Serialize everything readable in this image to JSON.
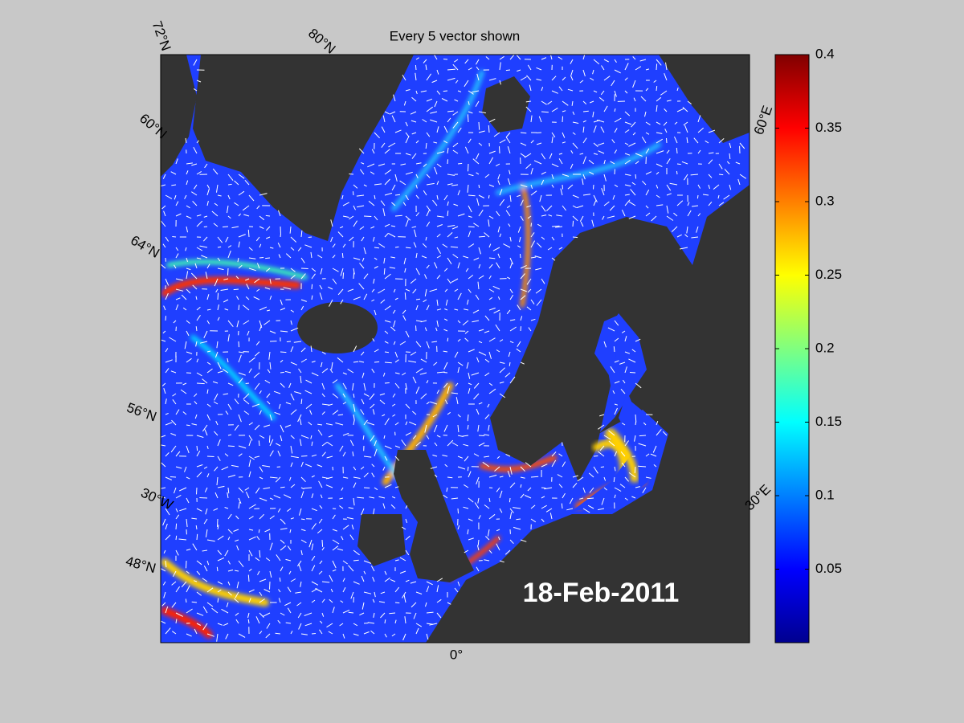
{
  "title": "Every 5 vector shown",
  "date_label": "18-Feb-2011",
  "graticule_labels": [
    "72°N",
    "80°N",
    "60°N",
    "64°N",
    "56°N",
    "30°W",
    "48°N",
    "0°",
    "30°E",
    "60°E"
  ],
  "colorbar": {
    "lim": [
      0,
      0.4
    ],
    "ticks": [
      0.05,
      0.1,
      0.15,
      0.2,
      0.25,
      0.3,
      0.35,
      0.4
    ],
    "colormap": "jet"
  }
}
